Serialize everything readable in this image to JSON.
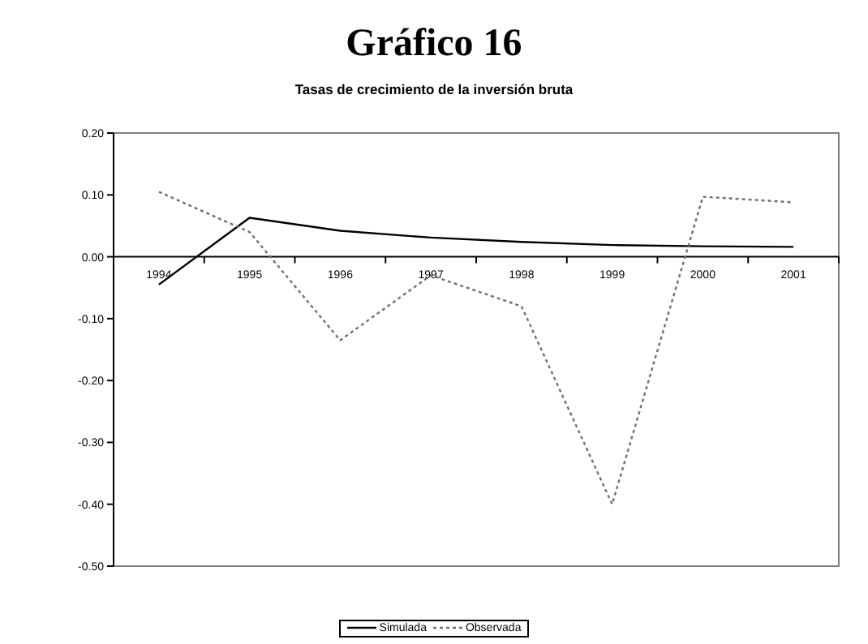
{
  "chart_data": {
    "type": "line",
    "title": "Gráfico 16",
    "subtitle": "Tasas de crecimiento de la inversión bruta",
    "categories": [
      "1994",
      "1995",
      "1996",
      "1997",
      "1998",
      "1999",
      "2000",
      "2001"
    ],
    "series": [
      {
        "name": "Simulada",
        "color": "#000000",
        "line_style": "solid",
        "values": [
          -0.045,
          0.063,
          0.042,
          0.031,
          0.024,
          0.019,
          0.017,
          0.016
        ]
      },
      {
        "name": "Observada",
        "color": "#707070",
        "line_style": "dotted",
        "values": [
          0.105,
          0.04,
          -0.135,
          -0.03,
          -0.08,
          -0.4,
          0.097,
          0.088
        ]
      }
    ],
    "ylim": [
      -0.5,
      0.2
    ],
    "yticks": [
      {
        "value": -0.5,
        "label": "-0.50"
      },
      {
        "value": -0.4,
        "label": "-0.40"
      },
      {
        "value": -0.3,
        "label": "-0.30"
      },
      {
        "value": -0.2,
        "label": "-0.20"
      },
      {
        "value": -0.1,
        "label": "-0.10"
      },
      {
        "value": 0,
        "label": "0.00"
      },
      {
        "value": 0.1,
        "label": "0.10"
      },
      {
        "value": 0.2,
        "label": "0.20"
      }
    ],
    "grid": false,
    "legend": "bottom",
    "marker": "none"
  }
}
